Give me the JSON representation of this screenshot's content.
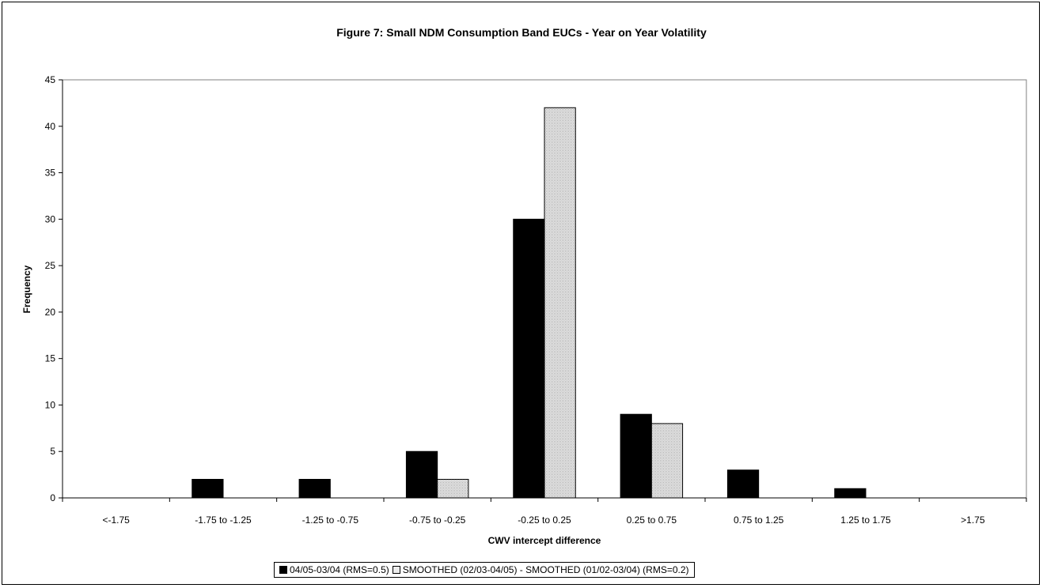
{
  "chart_data": {
    "type": "bar",
    "title": "Figure 7: Small NDM Consumption Band EUCs - Year on Year Volatility",
    "xlabel": "CWV intercept difference",
    "ylabel": "Frequency",
    "categories": [
      "<-1.75",
      "-1.75 to -1.25",
      "-1.25 to -0.75",
      "-0.75 to -0.25",
      "-0.25 to 0.25",
      "0.25 to 0.75",
      "0.75 to 1.25",
      "1.25 to 1.75",
      ">1.75"
    ],
    "series": [
      {
        "name": "04/05-03/04 (RMS=0.5)",
        "values": [
          0,
          2,
          2,
          5,
          30,
          9,
          3,
          1,
          0
        ],
        "color": "#000000"
      },
      {
        "name": "SMOOTHED (02/03-04/05) - SMOOTHED (01/02-03/04) (RMS=0.2)",
        "values": [
          0,
          0,
          0,
          2,
          42,
          8,
          0,
          0,
          0
        ],
        "color": "#e0e0e0",
        "pattern": "dotted"
      }
    ],
    "ylim": [
      0,
      45
    ],
    "yticks": [
      0,
      5,
      10,
      15,
      20,
      25,
      30,
      35,
      40,
      45
    ],
    "grid": false,
    "legend_position": "bottom"
  }
}
